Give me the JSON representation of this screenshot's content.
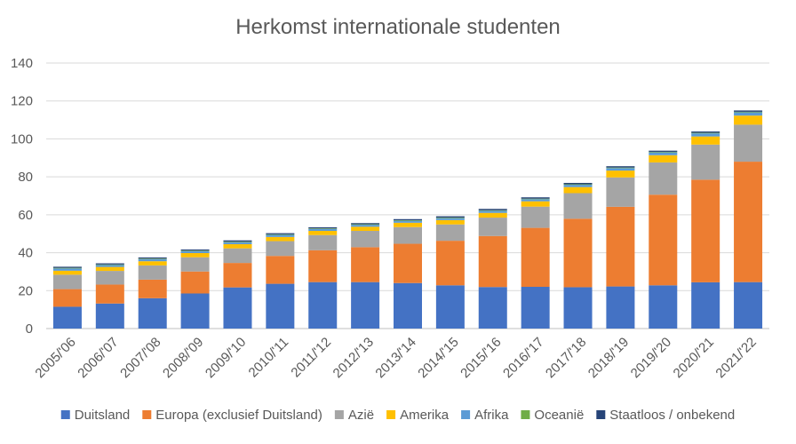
{
  "chart_data": {
    "type": "bar",
    "stacked": true,
    "title": "Herkomst internationale studenten",
    "xlabel": "",
    "ylabel": "",
    "ylim": [
      0,
      140
    ],
    "yticks": [
      0,
      20,
      40,
      60,
      80,
      100,
      120,
      140
    ],
    "grid": true,
    "legend_position": "bottom",
    "categories": [
      "2005/'06",
      "2006/'07",
      "2007/'08",
      "2008/'09",
      "2009/'10",
      "2010/'11",
      "2011/'12",
      "2012/'13",
      "2013/'14",
      "2014/'15",
      "2015/'16",
      "2016/'17",
      "2017/'18",
      "2018/'19",
      "2019/'20",
      "2020/'21",
      "2021/'22"
    ],
    "series": [
      {
        "name": "Duitsland",
        "color": "#4472c4",
        "values": [
          11.5,
          13.2,
          16.0,
          18.5,
          21.7,
          23.6,
          24.5,
          24.5,
          24.0,
          22.8,
          21.9,
          22.0,
          21.8,
          22.2,
          22.8,
          24.4,
          24.5
        ]
      },
      {
        "name": "Europa (exclusief Duitsland)",
        "color": "#ed7d31",
        "values": [
          9.3,
          10.0,
          9.8,
          11.6,
          12.9,
          14.7,
          16.8,
          18.4,
          20.7,
          23.5,
          26.9,
          31.1,
          36.1,
          42.0,
          47.8,
          54.1,
          63.5
        ]
      },
      {
        "name": "Azië",
        "color": "#a5a5a5",
        "values": [
          7.6,
          7.2,
          7.5,
          7.5,
          7.7,
          7.8,
          8.0,
          8.6,
          8.8,
          8.6,
          9.7,
          11.2,
          13.5,
          15.5,
          17.0,
          18.5,
          19.5
        ]
      },
      {
        "name": "Amerika",
        "color": "#ffc000",
        "values": [
          2.1,
          2.1,
          2.2,
          2.2,
          2.2,
          2.2,
          2.2,
          2.2,
          2.3,
          2.3,
          2.5,
          2.8,
          3.2,
          3.6,
          3.8,
          4.3,
          4.8
        ]
      },
      {
        "name": "Afrika",
        "color": "#5b9bd5",
        "values": [
          1.2,
          1.0,
          1.1,
          1.0,
          1.0,
          1.1,
          1.0,
          1.0,
          1.0,
          1.0,
          1.1,
          1.1,
          1.2,
          1.3,
          1.5,
          1.6,
          1.7
        ]
      },
      {
        "name": "Oceanië",
        "color": "#70ad47",
        "values": [
          0.3,
          0.3,
          0.3,
          0.3,
          0.3,
          0.3,
          0.3,
          0.3,
          0.3,
          0.3,
          0.3,
          0.3,
          0.3,
          0.3,
          0.3,
          0.3,
          0.3
        ]
      },
      {
        "name": "Staatloos / onbekend",
        "color": "#264478",
        "values": [
          0.6,
          0.6,
          0.6,
          0.6,
          0.7,
          0.6,
          0.6,
          0.6,
          0.6,
          0.7,
          0.7,
          0.7,
          0.7,
          0.7,
          0.6,
          0.7,
          0.7
        ]
      }
    ]
  }
}
